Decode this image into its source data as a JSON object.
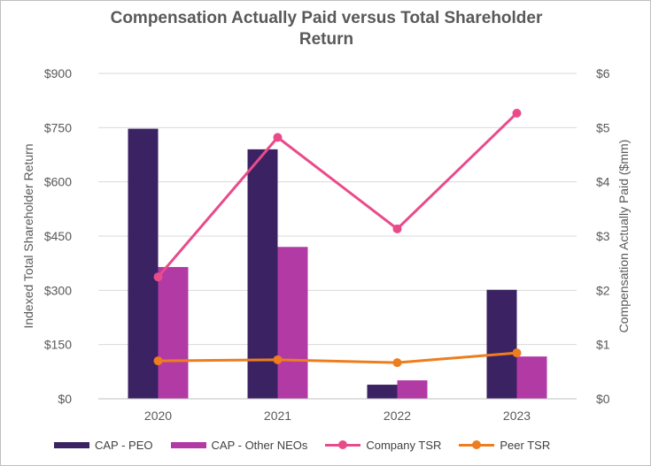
{
  "chart_data": {
    "type": "bar",
    "title": "Compensation Actually Paid versus Total Shareholder Return",
    "categories": [
      "2020",
      "2021",
      "2022",
      "2023"
    ],
    "y_left": {
      "label": "Indexed Total Shareholder Return",
      "range": [
        0,
        900
      ],
      "ticks": [
        0,
        150,
        300,
        450,
        600,
        750,
        900
      ],
      "tick_labels": [
        "$0",
        "$150",
        "$300",
        "$450",
        "$600",
        "$750",
        "$900"
      ]
    },
    "y_right": {
      "label": "Compensation Actually Paid ($mm)",
      "range": [
        0,
        6
      ],
      "ticks": [
        0,
        1,
        2,
        3,
        4,
        5,
        6
      ],
      "tick_labels": [
        "$0",
        "$1",
        "$2",
        "$3",
        "$4",
        "$5",
        "$6"
      ]
    },
    "bar_series": [
      {
        "name": "CAP - PEO",
        "axis": "right",
        "color": "#3b2263",
        "values": [
          4.98,
          4.6,
          0.26,
          2.01
        ]
      },
      {
        "name": "CAP - Other NEOs",
        "axis": "right",
        "color": "#b23aa5",
        "values": [
          2.43,
          2.8,
          0.34,
          0.78
        ]
      }
    ],
    "line_series": [
      {
        "name": "Company TSR",
        "axis": "left",
        "color": "#e94b8a",
        "values": [
          337,
          723,
          470,
          790
        ]
      },
      {
        "name": "Peer TSR",
        "axis": "left",
        "color": "#ed7d1f",
        "values": [
          105,
          108,
          100,
          127
        ]
      }
    ],
    "grid": true,
    "legend_position": "bottom"
  }
}
